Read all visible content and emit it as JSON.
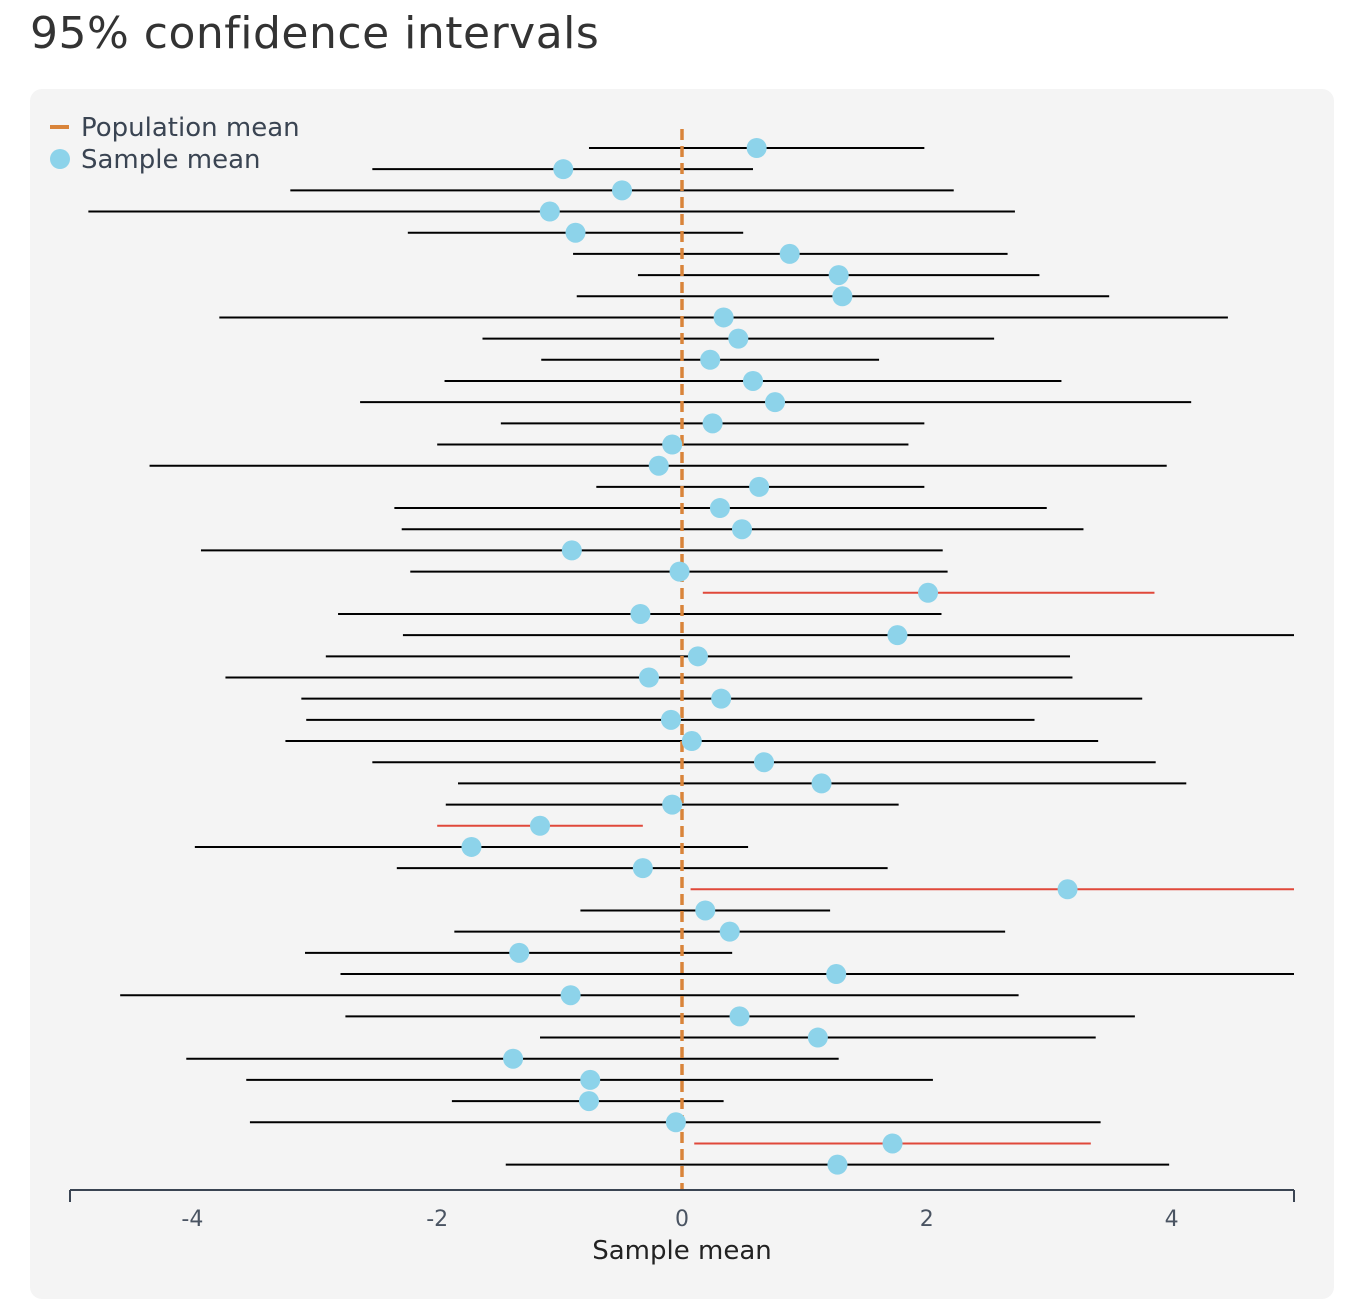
{
  "page": {
    "title": "95% confidence intervals"
  },
  "chart_data": {
    "type": "scatter",
    "xlabel": "Sample mean",
    "ylabel": "",
    "xlim": [
      -5,
      5
    ],
    "xticks": [
      -4,
      -2,
      0,
      2,
      4
    ],
    "population_mean": 0,
    "legend": {
      "placement": "top-left",
      "entries": [
        {
          "name": "Population mean",
          "marker": "dash"
        },
        {
          "name": "Sample mean",
          "marker": "dot"
        }
      ]
    },
    "colors": {
      "population_mean": "#d9843a",
      "sample_mean": "#8dd3ea",
      "interval": "#000000",
      "interval_missed": "#e0483a",
      "axis": "#3a4452"
    },
    "intervals": [
      {
        "mean": 0.61,
        "low": -0.76,
        "high": 1.98,
        "covers": true
      },
      {
        "mean": -0.97,
        "low": -2.53,
        "high": 0.58,
        "covers": true
      },
      {
        "mean": -0.49,
        "low": -3.2,
        "high": 2.22,
        "covers": true
      },
      {
        "mean": -1.08,
        "low": -4.85,
        "high": 2.72,
        "covers": true
      },
      {
        "mean": -0.87,
        "low": -2.24,
        "high": 0.5,
        "covers": true
      },
      {
        "mean": 0.88,
        "low": -0.89,
        "high": 2.66,
        "covers": true
      },
      {
        "mean": 1.28,
        "low": -0.36,
        "high": 2.92,
        "covers": true
      },
      {
        "mean": 1.31,
        "low": -0.86,
        "high": 3.49,
        "covers": true
      },
      {
        "mean": 0.34,
        "low": -3.78,
        "high": 4.46,
        "covers": true
      },
      {
        "mean": 0.46,
        "low": -1.63,
        "high": 2.55,
        "covers": true
      },
      {
        "mean": 0.23,
        "low": -1.15,
        "high": 1.61,
        "covers": true
      },
      {
        "mean": 0.58,
        "low": -1.94,
        "high": 3.1,
        "covers": true
      },
      {
        "mean": 0.76,
        "low": -2.63,
        "high": 4.16,
        "covers": true
      },
      {
        "mean": 0.25,
        "low": -1.48,
        "high": 1.98,
        "covers": true
      },
      {
        "mean": -0.08,
        "low": -2.0,
        "high": 1.85,
        "covers": true
      },
      {
        "mean": -0.19,
        "low": -4.35,
        "high": 3.96,
        "covers": true
      },
      {
        "mean": 0.63,
        "low": -0.7,
        "high": 1.98,
        "covers": true
      },
      {
        "mean": 0.31,
        "low": -2.35,
        "high": 2.98,
        "covers": true
      },
      {
        "mean": 0.49,
        "low": -2.29,
        "high": 3.28,
        "covers": true
      },
      {
        "mean": -0.9,
        "low": -3.93,
        "high": 2.13,
        "covers": true
      },
      {
        "mean": -0.02,
        "low": -2.22,
        "high": 2.17,
        "covers": true
      },
      {
        "mean": 2.01,
        "low": 0.17,
        "high": 3.86,
        "covers": false
      },
      {
        "mean": -0.34,
        "low": -2.81,
        "high": 2.12,
        "covers": true
      },
      {
        "mean": 1.76,
        "low": -2.28,
        "high": 5.0,
        "covers": true
      },
      {
        "mean": 0.13,
        "low": -2.91,
        "high": 3.17,
        "covers": true
      },
      {
        "mean": -0.27,
        "low": -3.73,
        "high": 3.19,
        "covers": true
      },
      {
        "mean": 0.32,
        "low": -3.11,
        "high": 3.76,
        "covers": true
      },
      {
        "mean": -0.09,
        "low": -3.07,
        "high": 2.88,
        "covers": true
      },
      {
        "mean": 0.08,
        "low": -3.24,
        "high": 3.4,
        "covers": true
      },
      {
        "mean": 0.67,
        "low": -2.53,
        "high": 3.87,
        "covers": true
      },
      {
        "mean": 1.14,
        "low": -1.83,
        "high": 4.12,
        "covers": true
      },
      {
        "mean": -0.08,
        "low": -1.93,
        "high": 1.77,
        "covers": true
      },
      {
        "mean": -1.16,
        "low": -2.0,
        "high": -0.32,
        "covers": false
      },
      {
        "mean": -1.72,
        "low": -3.98,
        "high": 0.54,
        "covers": true
      },
      {
        "mean": -0.32,
        "low": -2.33,
        "high": 1.68,
        "covers": true
      },
      {
        "mean": 3.15,
        "low": 0.07,
        "high": 5.0,
        "covers": false
      },
      {
        "mean": 0.19,
        "low": -0.83,
        "high": 1.21,
        "covers": true
      },
      {
        "mean": 0.39,
        "low": -1.86,
        "high": 2.64,
        "covers": true
      },
      {
        "mean": -1.33,
        "low": -3.08,
        "high": 0.41,
        "covers": true
      },
      {
        "mean": 1.26,
        "low": -2.79,
        "high": 5.0,
        "covers": true
      },
      {
        "mean": -0.91,
        "low": -4.59,
        "high": 2.75,
        "covers": true
      },
      {
        "mean": 0.47,
        "low": -2.75,
        "high": 3.7,
        "covers": true
      },
      {
        "mean": 1.11,
        "low": -1.16,
        "high": 3.38,
        "covers": true
      },
      {
        "mean": -1.38,
        "low": -4.05,
        "high": 1.28,
        "covers": true
      },
      {
        "mean": -0.75,
        "low": -3.56,
        "high": 2.05,
        "covers": true
      },
      {
        "mean": -0.76,
        "low": -1.88,
        "high": 0.34,
        "covers": true
      },
      {
        "mean": -0.05,
        "low": -3.53,
        "high": 3.42,
        "covers": true
      },
      {
        "mean": 1.72,
        "low": 0.1,
        "high": 3.34,
        "covers": false
      },
      {
        "mean": 1.27,
        "low": -1.44,
        "high": 3.98,
        "covers": true
      }
    ]
  }
}
